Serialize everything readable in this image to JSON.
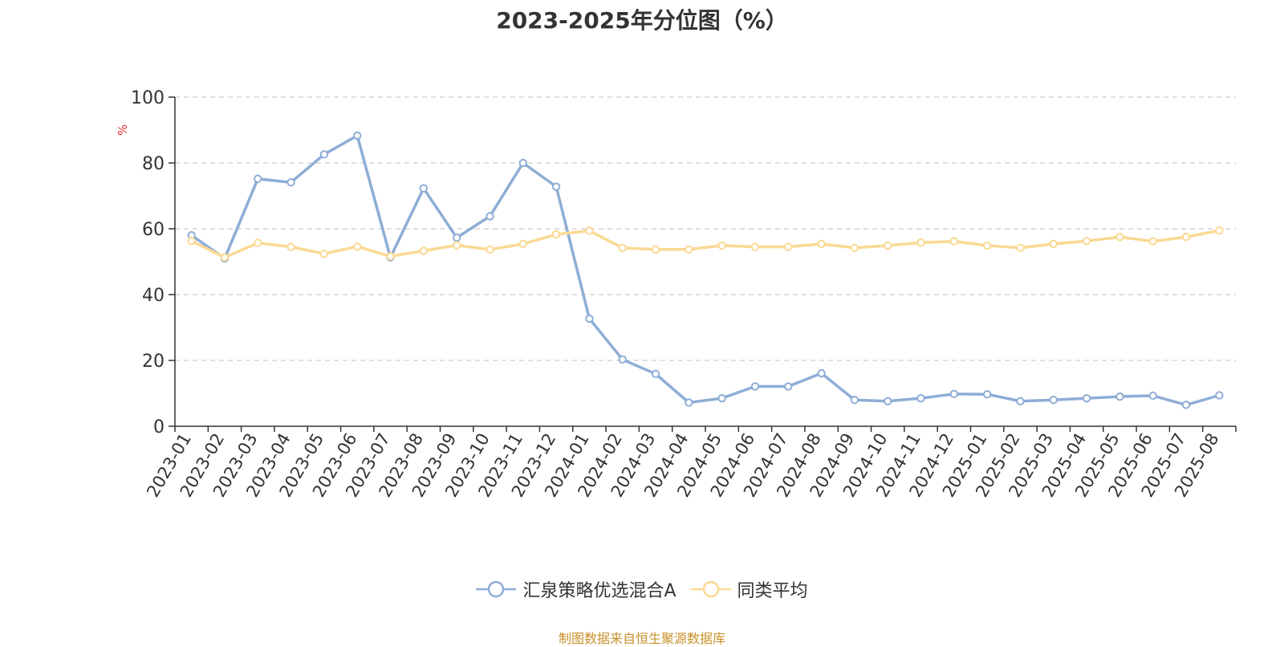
{
  "chart_data": {
    "type": "line",
    "title": "2023-2025年分位图（%）",
    "ylabel": "%",
    "xlabel": "",
    "ylim": [
      0,
      100
    ],
    "yticks": [
      0,
      20,
      40,
      60,
      80,
      100
    ],
    "grid": true,
    "legend_position": "bottom",
    "categories": [
      "2023-01",
      "2023-02",
      "2023-03",
      "2023-04",
      "2023-05",
      "2023-06",
      "2023-07",
      "2023-08",
      "2023-09",
      "2023-10",
      "2023-11",
      "2023-12",
      "2024-01",
      "2024-02",
      "2024-03",
      "2024-04",
      "2024-05",
      "2024-06",
      "2024-07",
      "2024-08",
      "2024-09",
      "2024-10",
      "2024-11",
      "2024-12",
      "2025-01",
      "2025-02",
      "2025-03",
      "2025-04",
      "2025-05",
      "2025-06",
      "2025-07",
      "2025-08"
    ],
    "series": [
      {
        "name": "汇泉策略优选混合A",
        "color": "#8eadd6",
        "values": [
          58,
          51,
          75.2,
          74.1,
          82.6,
          88.3,
          51.3,
          72.3,
          57.3,
          63.8,
          80,
          72.8,
          32.7,
          20.3,
          15.9,
          7.2,
          8.5,
          12.1,
          12.1,
          16.1,
          8,
          7.6,
          8.5,
          9.8,
          9.7,
          7.6,
          8,
          8.5,
          9,
          9.3,
          6.5,
          9.4
        ]
      },
      {
        "name": "同类平均",
        "color": "#fad993",
        "values": [
          56.3,
          51.3,
          55.7,
          54.5,
          52.4,
          54.6,
          51.6,
          53.3,
          55,
          53.7,
          55.4,
          58.3,
          59.4,
          54.2,
          53.7,
          53.7,
          54.9,
          54.5,
          54.5,
          55.4,
          54.2,
          54.9,
          55.8,
          56.2,
          54.9,
          54.2,
          55.4,
          56.3,
          57.5,
          56.2,
          57.5,
          59.5
        ]
      }
    ]
  },
  "footer": {
    "source": "制图数据来自恒生聚源数据库"
  }
}
